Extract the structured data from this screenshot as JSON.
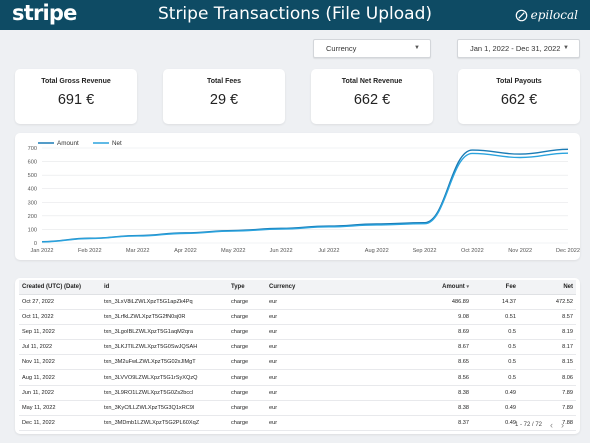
{
  "header": {
    "logo": "stripe",
    "title": "Stripe Transactions (File Upload)",
    "brand": "epilocal"
  },
  "filters": {
    "currency": "Currency",
    "date_range": "Jan 1, 2022 - Dec 31, 2022"
  },
  "kpis": [
    {
      "label": "Total Gross Revenue",
      "value": "691 €"
    },
    {
      "label": "Total Fees",
      "value": "29 €"
    },
    {
      "label": "Total Net Revenue",
      "value": "662 €"
    },
    {
      "label": "Total Payouts",
      "value": "662 €"
    }
  ],
  "chart_data": {
    "type": "line",
    "x": [
      "Jan 2022",
      "Feb 2022",
      "Mar 2022",
      "Apr 2022",
      "May 2022",
      "Jun 2022",
      "Jul 2022",
      "Aug 2022",
      "Sep 2022",
      "Oct 2022",
      "Nov 2022",
      "Dec 2022"
    ],
    "series": [
      {
        "name": "Amount",
        "color": "#1a7bb5",
        "values": [
          10,
          35,
          55,
          75,
          92,
          108,
          125,
          140,
          150,
          685,
          655,
          690
        ]
      },
      {
        "name": "Net",
        "color": "#2aa3de",
        "values": [
          8,
          33,
          52,
          71,
          88,
          103,
          119,
          133,
          142,
          660,
          630,
          662
        ]
      }
    ],
    "yticks": [
      0,
      100,
      200,
      300,
      400,
      500,
      600,
      700
    ],
    "ylim": [
      0,
      700
    ],
    "legend": "top-left",
    "grid": true
  },
  "table": {
    "headers": [
      "Created (UTC) (Date)",
      "id",
      "Type",
      "Currency",
      "Amount",
      "Fee",
      "Net"
    ],
    "sort_indicator": "▾",
    "rows": [
      [
        "Oct 27, 2022",
        "txn_3LxV8iLZWLXpzT5G1apZk4Pq",
        "charge",
        "eur",
        "486.89",
        "14.37",
        "472.52"
      ],
      [
        "Oct 11, 2022",
        "txn_3LrfkLZWLXpzT5G2fN0sj0R",
        "charge",
        "eur",
        "9.08",
        "0.51",
        "8.57"
      ],
      [
        "Sep 11, 2022",
        "txn_3LgoIBLZWLXpzT5G1aqM2qra",
        "charge",
        "eur",
        "8.69",
        "0.5",
        "8.19"
      ],
      [
        "Jul 11, 2022",
        "txn_3LKJTILZWLXpzT5G0SwJQSAH",
        "charge",
        "eur",
        "8.67",
        "0.5",
        "8.17"
      ],
      [
        "Nov 11, 2022",
        "txn_3M2uFwLZWLXpzT5G02xJlMgT",
        "charge",
        "eur",
        "8.65",
        "0.5",
        "8.15"
      ],
      [
        "Aug 11, 2022",
        "txn_3LVVO9LZWLXpzT5G1rSyXQzQ",
        "charge",
        "eur",
        "8.56",
        "0.5",
        "8.06"
      ],
      [
        "Jun 11, 2022",
        "txn_3L9RO1LZWLXpzT5G0Zs2bccl",
        "charge",
        "eur",
        "8.38",
        "0.49",
        "7.89"
      ],
      [
        "May 11, 2022",
        "txn_3KyCfLLZWLXpzT5G3Q1xRC9l",
        "charge",
        "eur",
        "8.38",
        "0.49",
        "7.89"
      ],
      [
        "Dec 11, 2022",
        "txn_3MDmb1LZWLXpzT5G2PL60XqZ",
        "charge",
        "eur",
        "8.37",
        "0.49",
        "7.88"
      ]
    ],
    "pager": "1 - 72 / 72",
    "prev": "‹",
    "next": "›"
  },
  "colors": {
    "header": "#0e4b64",
    "amount_line": "#1a7bb5",
    "net_line": "#2aa3de"
  },
  "icons": {
    "brand": "epilocal-icon",
    "caret": "caret-down-icon"
  }
}
